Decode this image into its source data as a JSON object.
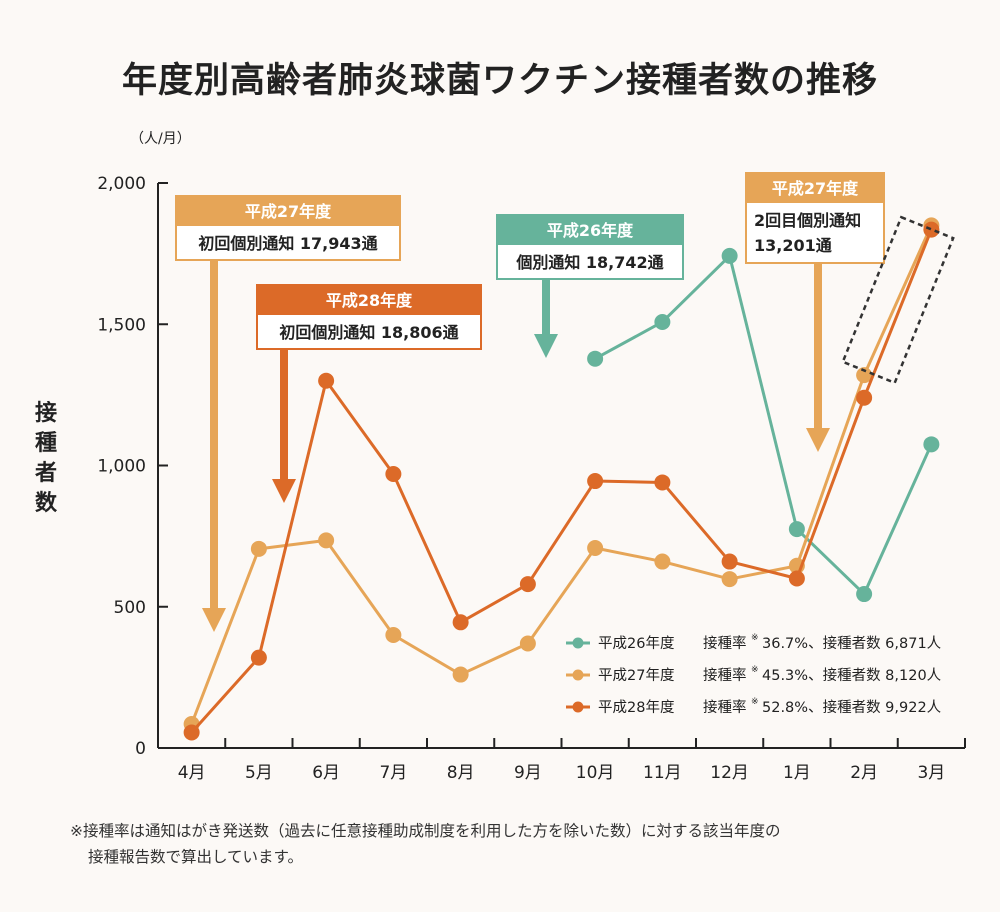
{
  "title": "年度別高齢者肺炎球菌ワクチン接種者数の推移",
  "chart_data": {
    "type": "line",
    "unit_label": "（人/月）",
    "ylabel": "接種者数",
    "ylim": [
      0,
      2000
    ],
    "yticks": [
      0,
      500,
      "1,000",
      "1,500",
      "2,000"
    ],
    "ytick_values": [
      0,
      500,
      1000,
      1500,
      2000
    ],
    "categories": [
      "4月",
      "5月",
      "6月",
      "7月",
      "8月",
      "9月",
      "10月",
      "11月",
      "12月",
      "1月",
      "2月",
      "3月"
    ],
    "series": [
      {
        "name": "平成26年度",
        "legend_rest": "接種率",
        "legend_mark": "※",
        "legend_tail": "36.7%、接種者数 6,871人",
        "color": "#66b39b",
        "values": [
          null,
          null,
          null,
          null,
          null,
          null,
          1378,
          1508,
          1742,
          775,
          545,
          1075
        ]
      },
      {
        "name": "平成27年度",
        "legend_rest": "接種率",
        "legend_mark": "※",
        "legend_tail": "45.3%、接種者数 8,120人",
        "color": "#e6a557",
        "values": [
          85,
          705,
          735,
          400,
          260,
          370,
          708,
          660,
          598,
          645,
          1320,
          1850
        ]
      },
      {
        "name": "平成28年度",
        "legend_rest": "接種率",
        "legend_mark": "※",
        "legend_tail": "52.8%、接種者数 9,922人",
        "color": "#dc6a28",
        "values": [
          55,
          320,
          1300,
          970,
          445,
          580,
          945,
          940,
          660,
          600,
          1240,
          1835
        ]
      }
    ],
    "annotations": [
      {
        "header": "平成27年度",
        "body": [
          "初回個別通知 17,943通"
        ],
        "color": "#e6a557"
      },
      {
        "header": "平成28年度",
        "body": [
          "初回個別通知 18,806通"
        ],
        "color": "#dc6a28"
      },
      {
        "header": "平成26年度",
        "body": [
          "個別通知 18,742通"
        ],
        "color": "#66b39b"
      },
      {
        "header": "平成27年度",
        "body": [
          "2回目個別通知",
          "13,201通"
        ],
        "color": "#e6a557"
      }
    ],
    "grid": false,
    "legend_position": "bottom-right"
  },
  "footnote": {
    "line1": "※接種率は通知はがき発送数（過去に任意接種助成制度を利用した方を除いた数）に対する該当年度の",
    "line2": "接種報告数で算出しています。"
  }
}
